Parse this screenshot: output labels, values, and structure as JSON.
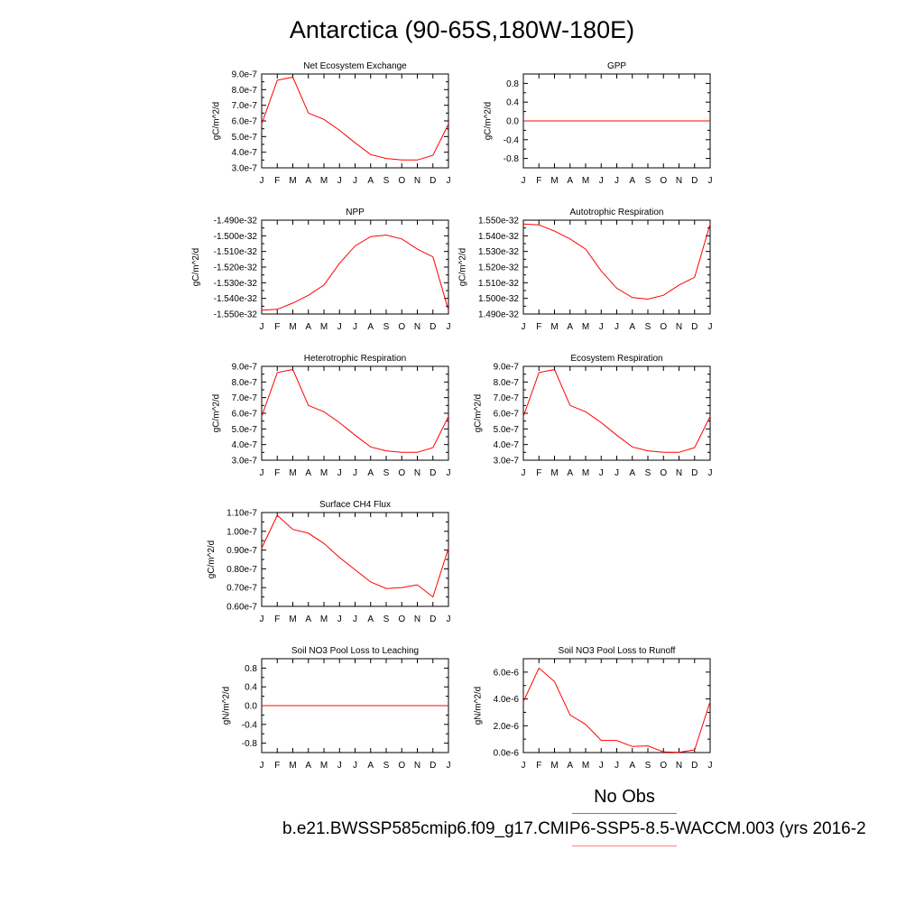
{
  "page_title": "Antarctica (90-65S,180W-180E)",
  "legend": {
    "obs_label": "No Obs",
    "obs_color": "#6a6ee8",
    "model_label": "b.e21.BWSSP585cmip6.f09_g17.CMIP6-SSP5-8.5-WACCM.003 (yrs 2016-2",
    "model_color": "#ff8080"
  },
  "series_color": "#ff0000",
  "chart_data": [
    {
      "type": "line",
      "title": "Net Ecosystem Exchange",
      "ylabel": "gC/m^2/d",
      "xticks": [
        "J",
        "F",
        "M",
        "A",
        "M",
        "J",
        "J",
        "A",
        "S",
        "O",
        "N",
        "D",
        "J"
      ],
      "yticks": [
        3e-07,
        4e-07,
        5e-07,
        6e-07,
        7e-07,
        8e-07,
        9e-07
      ],
      "ytick_labels": [
        "3.0e-7",
        "4.0e-7",
        "5.0e-7",
        "6.0e-7",
        "7.0e-7",
        "8.0e-7",
        "9.0e-7"
      ],
      "ylim": [
        3e-07,
        9e-07
      ],
      "values": [
        5.8e-07,
        8.6e-07,
        8.8e-07,
        6.5e-07,
        6.1e-07,
        5.4e-07,
        4.6e-07,
        3.85e-07,
        3.6e-07,
        3.5e-07,
        3.5e-07,
        3.8e-07,
        5.8e-07
      ]
    },
    {
      "type": "line",
      "title": "GPP",
      "ylabel": "gC/m^2/d",
      "xticks": [
        "J",
        "F",
        "M",
        "A",
        "M",
        "J",
        "J",
        "A",
        "S",
        "O",
        "N",
        "D",
        "J"
      ],
      "yticks": [
        -0.8,
        -0.4,
        0.0,
        0.4,
        0.8
      ],
      "ytick_labels": [
        "-0.8",
        "-0.4",
        "0.0",
        "0.4",
        "0.8"
      ],
      "ylim": [
        -1.0,
        1.0
      ],
      "values": [
        0,
        0,
        0,
        0,
        0,
        0,
        0,
        0,
        0,
        0,
        0,
        0,
        0
      ]
    },
    {
      "type": "line",
      "title": "NPP",
      "ylabel": "gC/m^2/d",
      "xticks": [
        "J",
        "F",
        "M",
        "A",
        "M",
        "J",
        "J",
        "A",
        "S",
        "O",
        "N",
        "D",
        "J"
      ],
      "yticks": [
        -1.55e-32,
        -1.54e-32,
        -1.53e-32,
        -1.52e-32,
        -1.51e-32,
        -1.5e-32,
        -1.49e-32
      ],
      "ytick_labels": [
        "-1.550e-32",
        "-1.540e-32",
        "-1.530e-32",
        "-1.520e-32",
        "-1.510e-32",
        "-1.500e-32",
        "-1.490e-32"
      ],
      "ylim": [
        -1.55e-32,
        -1.49e-32
      ],
      "values": [
        -1.5475e-32,
        -1.547e-32,
        -1.543e-32,
        -1.538e-32,
        -1.5315e-32,
        -1.5175e-32,
        -1.5065e-32,
        -1.5005e-32,
        -1.4995e-32,
        -1.502e-32,
        -1.5085e-32,
        -1.5135e-32,
        -1.5475e-32
      ]
    },
    {
      "type": "line",
      "title": "Autotrophic Respiration",
      "ylabel": "gC/m^2/d",
      "xticks": [
        "J",
        "F",
        "M",
        "A",
        "M",
        "J",
        "J",
        "A",
        "S",
        "O",
        "N",
        "D",
        "J"
      ],
      "yticks": [
        1.49e-32,
        1.5e-32,
        1.51e-32,
        1.52e-32,
        1.53e-32,
        1.54e-32,
        1.55e-32
      ],
      "ytick_labels": [
        "1.490e-32",
        "1.500e-32",
        "1.510e-32",
        "1.520e-32",
        "1.530e-32",
        "1.540e-32",
        "1.550e-32"
      ],
      "ylim": [
        1.49e-32,
        1.55e-32
      ],
      "values": [
        1.5475e-32,
        1.547e-32,
        1.543e-32,
        1.538e-32,
        1.5315e-32,
        1.5175e-32,
        1.5065e-32,
        1.5005e-32,
        1.4995e-32,
        1.502e-32,
        1.5085e-32,
        1.5135e-32,
        1.5475e-32
      ]
    },
    {
      "type": "line",
      "title": "Heterotrophic Respiration",
      "ylabel": "gC/m^2/d",
      "xticks": [
        "J",
        "F",
        "M",
        "A",
        "M",
        "J",
        "J",
        "A",
        "S",
        "O",
        "N",
        "D",
        "J"
      ],
      "yticks": [
        3e-07,
        4e-07,
        5e-07,
        6e-07,
        7e-07,
        8e-07,
        9e-07
      ],
      "ytick_labels": [
        "3.0e-7",
        "4.0e-7",
        "5.0e-7",
        "6.0e-7",
        "7.0e-7",
        "8.0e-7",
        "9.0e-7"
      ],
      "ylim": [
        3e-07,
        9e-07
      ],
      "values": [
        5.8e-07,
        8.6e-07,
        8.8e-07,
        6.5e-07,
        6.1e-07,
        5.4e-07,
        4.6e-07,
        3.85e-07,
        3.6e-07,
        3.5e-07,
        3.5e-07,
        3.8e-07,
        5.8e-07
      ]
    },
    {
      "type": "line",
      "title": "Ecosystem Respiration",
      "ylabel": "gC/m^2/d",
      "xticks": [
        "J",
        "F",
        "M",
        "A",
        "M",
        "J",
        "J",
        "A",
        "S",
        "O",
        "N",
        "D",
        "J"
      ],
      "yticks": [
        3e-07,
        4e-07,
        5e-07,
        6e-07,
        7e-07,
        8e-07,
        9e-07
      ],
      "ytick_labels": [
        "3.0e-7",
        "4.0e-7",
        "5.0e-7",
        "6.0e-7",
        "7.0e-7",
        "8.0e-7",
        "9.0e-7"
      ],
      "ylim": [
        3e-07,
        9e-07
      ],
      "values": [
        5.8e-07,
        8.6e-07,
        8.8e-07,
        6.5e-07,
        6.1e-07,
        5.4e-07,
        4.6e-07,
        3.85e-07,
        3.6e-07,
        3.5e-07,
        3.5e-07,
        3.8e-07,
        5.8e-07
      ]
    },
    {
      "type": "line",
      "title": "Surface CH4 Flux",
      "ylabel": "gC/m^2/d",
      "xticks": [
        "J",
        "F",
        "M",
        "A",
        "M",
        "J",
        "J",
        "A",
        "S",
        "O",
        "N",
        "D",
        "J"
      ],
      "yticks": [
        6e-08,
        7e-08,
        8e-08,
        9e-08,
        1e-07,
        1.1e-07
      ],
      "ytick_labels": [
        "0.60e-7",
        "0.70e-7",
        "0.80e-7",
        "0.90e-7",
        "1.00e-7",
        "1.10e-7"
      ],
      "ylim": [
        6e-08,
        1.1e-07
      ],
      "values": [
        9.1e-08,
        1.085e-07,
        1.01e-07,
        9.9e-08,
        9.35e-08,
        8.6e-08,
        7.95e-08,
        7.3e-08,
        6.95e-08,
        7e-08,
        7.15e-08,
        6.5e-08,
        9.1e-08
      ]
    },
    {
      "type": "line",
      "title": "Soil NO3 Pool Loss to Leaching",
      "ylabel": "gN/m^2/d",
      "xticks": [
        "J",
        "F",
        "M",
        "A",
        "M",
        "J",
        "J",
        "A",
        "S",
        "O",
        "N",
        "D",
        "J"
      ],
      "yticks": [
        -0.8,
        -0.4,
        0.0,
        0.4,
        0.8
      ],
      "ytick_labels": [
        "-0.8",
        "-0.4",
        "0.0",
        "0.4",
        "0.8"
      ],
      "ylim": [
        -1.0,
        1.0
      ],
      "values": [
        0,
        0,
        0,
        0,
        0,
        0,
        0,
        0,
        0,
        0,
        0,
        0,
        0
      ]
    },
    {
      "type": "line",
      "title": "Soil NO3 Pool Loss to Runoff",
      "ylabel": "gN/m^2/d",
      "xticks": [
        "J",
        "F",
        "M",
        "A",
        "M",
        "J",
        "J",
        "A",
        "S",
        "O",
        "N",
        "D",
        "J"
      ],
      "yticks": [
        0,
        2e-06,
        4e-06,
        6e-06
      ],
      "ytick_labels": [
        "0.0e-6",
        "2.0e-6",
        "4.0e-6",
        "6.0e-6"
      ],
      "ylim": [
        0,
        7e-06
      ],
      "values": [
        3.8e-06,
        6.3e-06,
        5.3e-06,
        2.8e-06,
        2.1e-06,
        9e-07,
        9e-07,
        4.5e-07,
        5e-07,
        5e-08,
        2e-08,
        2e-07,
        3.8e-06
      ]
    }
  ]
}
